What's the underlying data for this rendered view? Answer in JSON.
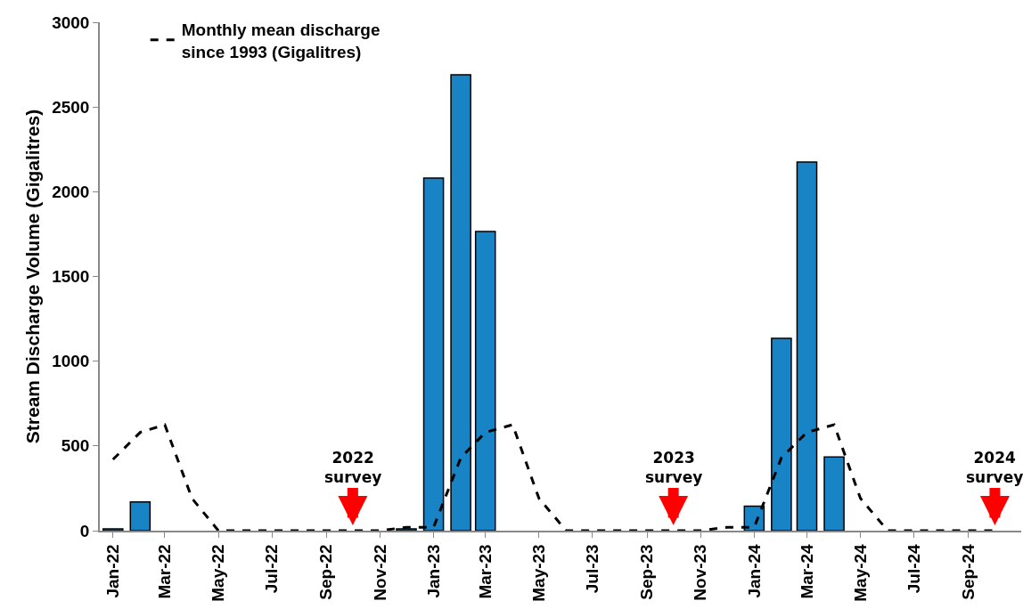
{
  "chart_data": {
    "type": "bar",
    "ylabel": "Stream Discharge Volume (Gigalitres)",
    "x": [
      "2022-01",
      "2022-02",
      "2022-03",
      "2022-04",
      "2022-05",
      "2022-06",
      "2022-07",
      "2022-08",
      "2022-09",
      "2022-10",
      "2022-11",
      "2022-12",
      "2023-01",
      "2023-02",
      "2023-03",
      "2023-04",
      "2023-05",
      "2023-06",
      "2023-07",
      "2023-08",
      "2023-09",
      "2023-10",
      "2023-11",
      "2023-12",
      "2024-01",
      "2024-02",
      "2024-03",
      "2024-04",
      "2024-05",
      "2024-06",
      "2024-07",
      "2024-08",
      "2024-09",
      "2024-10"
    ],
    "series": [
      {
        "type": "bar",
        "color": "#1984c5",
        "values": [
          10,
          170,
          0,
          0,
          0,
          0,
          0,
          0,
          0,
          0,
          0,
          10,
          2080,
          2690,
          1765,
          0,
          0,
          0,
          0,
          0,
          0,
          0,
          0,
          0,
          145,
          1135,
          2175,
          435,
          0,
          0,
          0,
          0,
          0,
          0
        ]
      },
      {
        "type": "line",
        "name": "Monthly mean discharge\nsince 1993 (Gigalitres)",
        "color": "#000000",
        "line_style": "dashed",
        "marker": "none",
        "values": [
          420,
          580,
          625,
          190,
          0,
          0,
          0,
          0,
          0,
          0,
          0,
          20,
          20,
          430,
          580,
          625,
          190,
          0,
          0,
          0,
          0,
          0,
          0,
          20,
          20,
          430,
          580,
          625,
          190,
          0,
          0,
          0,
          0,
          0
        ]
      }
    ],
    "xlim": [
      "2021-12-17",
      "2024-10-31"
    ],
    "xticks": [
      {
        "value": "2022-01",
        "label": "Jan-22"
      },
      {
        "value": "2022-03",
        "label": "Mar-22"
      },
      {
        "value": "2022-05",
        "label": "May-22"
      },
      {
        "value": "2022-07",
        "label": "Jul-22"
      },
      {
        "value": "2022-09",
        "label": "Sep-22"
      },
      {
        "value": "2022-11",
        "label": "Nov-22"
      },
      {
        "value": "2023-01",
        "label": "Jan-23"
      },
      {
        "value": "2023-03",
        "label": "Mar-23"
      },
      {
        "value": "2023-05",
        "label": "May-23"
      },
      {
        "value": "2023-07",
        "label": "Jul-23"
      },
      {
        "value": "2023-09",
        "label": "Sep-23"
      },
      {
        "value": "2023-11",
        "label": "Nov-23"
      },
      {
        "value": "2024-01",
        "label": "Jan-24"
      },
      {
        "value": "2024-03",
        "label": "Mar-24"
      },
      {
        "value": "2024-05",
        "label": "May-24"
      },
      {
        "value": "2024-07",
        "label": "Jul-24"
      },
      {
        "value": "2024-09",
        "label": "Sep-24"
      }
    ],
    "ylim": [
      0,
      3000
    ],
    "yticks": [
      0,
      500,
      1000,
      1500,
      2000,
      2500,
      3000
    ],
    "annotations": [
      {
        "text": "2022\nsurvey",
        "x": "2022-10",
        "y": 0
      },
      {
        "text": "2023\nsurvey",
        "x": "2023-10",
        "y": 0
      },
      {
        "text": "2024\nsurvey",
        "x": "2024-10",
        "y": 0
      }
    ],
    "grid": false,
    "legend": "top left"
  }
}
